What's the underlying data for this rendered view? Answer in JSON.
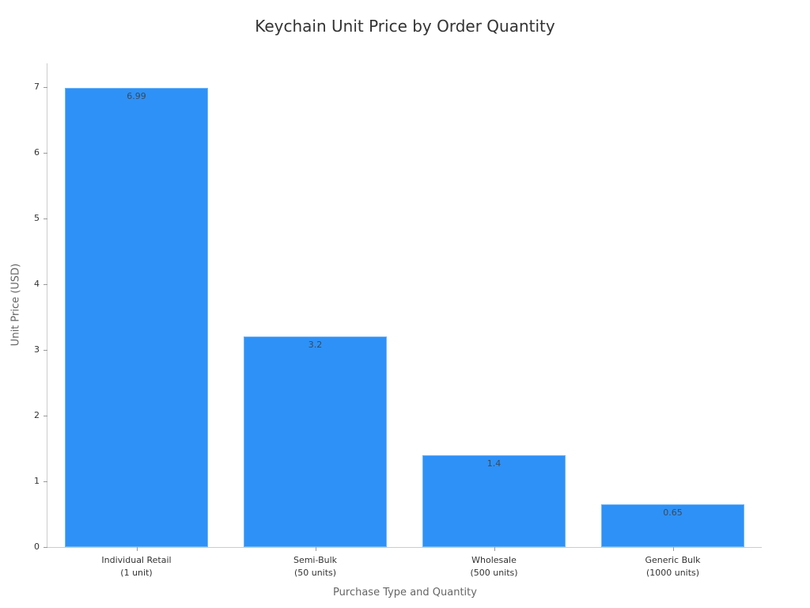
{
  "chart_data": {
    "type": "bar",
    "title": "Keychain Unit Price by Order Quantity",
    "xlabel": "Purchase Type and Quantity",
    "ylabel": "Unit Price (USD)",
    "categories": [
      "Individual Retail\n(1 unit)",
      "Semi-Bulk\n(50 units)",
      "Wholesale\n(500 units)",
      "Generic Bulk\n(1000 units)"
    ],
    "category_lines": [
      [
        "Individual Retail",
        "(1 unit)"
      ],
      [
        "Semi-Bulk",
        "(50 units)"
      ],
      [
        "Wholesale",
        "(500 units)"
      ],
      [
        "Generic Bulk",
        "(1000 units)"
      ]
    ],
    "values": [
      6.99,
      3.2,
      1.4,
      0.65
    ],
    "value_labels": [
      "6.99",
      "3.2",
      "1.4",
      "0.65"
    ],
    "yticks": [
      "0",
      "1",
      "2",
      "3",
      "4",
      "5",
      "6",
      "7"
    ],
    "ylim": [
      0,
      7.35
    ],
    "grid": false,
    "legend": null,
    "bar_color": "#2e91f7"
  }
}
